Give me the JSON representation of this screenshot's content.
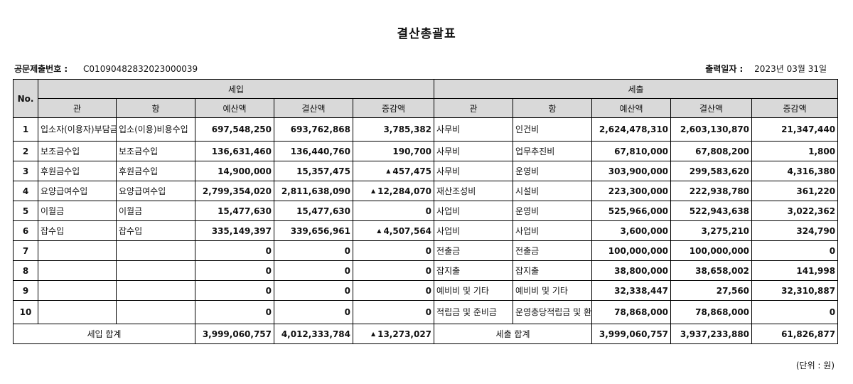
{
  "title": "결산총괄표",
  "doc_no_label": "공문제출번호 :",
  "doc_no": "C0109048283202300003​9",
  "print_date_label": "출력일자 :",
  "print_date": "2023년 03월 31일",
  "headers": {
    "no": "No.",
    "income_group": "세입",
    "expense_group": "세출",
    "gwan": "관",
    "hang": "항",
    "budget": "예산액",
    "settlement": "결산액",
    "change": "증감액"
  },
  "rows": [
    {
      "no": "1",
      "in_gwan": "입소자(이용자)부담금수입",
      "in_hang": "입소(이용)비용수입",
      "in_budget": "697,548,250",
      "in_settle": "693,762,868",
      "in_change": "3,785,382",
      "in_up": "",
      "ex_gwan": "사무비",
      "ex_hang": "인건비",
      "ex_budget": "2,624,478,310",
      "ex_settle": "2,603,130,870",
      "ex_change": "21,347,440"
    },
    {
      "no": "2",
      "in_gwan": "보조금수입",
      "in_hang": "보조금수입",
      "in_budget": "136,631,460",
      "in_settle": "136,440,760",
      "in_change": "190,700",
      "in_up": "",
      "ex_gwan": "사무비",
      "ex_hang": "업무추진비",
      "ex_budget": "67,810,000",
      "ex_settle": "67,808,200",
      "ex_change": "1,800"
    },
    {
      "no": "3",
      "in_gwan": "후원금수입",
      "in_hang": "후원금수입",
      "in_budget": "14,900,000",
      "in_settle": "15,357,475",
      "in_change": "457,475",
      "in_up": "▲",
      "ex_gwan": "사무비",
      "ex_hang": "운영비",
      "ex_budget": "303,900,000",
      "ex_settle": "299,583,620",
      "ex_change": "4,316,380"
    },
    {
      "no": "4",
      "in_gwan": "요양급여수입",
      "in_hang": "요양급여수입",
      "in_budget": "2,799,354,020",
      "in_settle": "2,811,638,090",
      "in_change": "12,284,070",
      "in_up": "▲",
      "ex_gwan": "재산조성비",
      "ex_hang": "시설비",
      "ex_budget": "223,300,000",
      "ex_settle": "222,938,780",
      "ex_change": "361,220"
    },
    {
      "no": "5",
      "in_gwan": "이월금",
      "in_hang": "이월금",
      "in_budget": "15,477,630",
      "in_settle": "15,477,630",
      "in_change": "0",
      "in_up": "",
      "ex_gwan": "사업비",
      "ex_hang": "운영비",
      "ex_budget": "525,966,000",
      "ex_settle": "522,943,638",
      "ex_change": "3,022,362"
    },
    {
      "no": "6",
      "in_gwan": "잡수입",
      "in_hang": "잡수입",
      "in_budget": "335,149,397",
      "in_settle": "339,656,961",
      "in_change": "4,507,564",
      "in_up": "▲",
      "ex_gwan": "사업비",
      "ex_hang": "사업비",
      "ex_budget": "3,600,000",
      "ex_settle": "3,275,210",
      "ex_change": "324,790"
    },
    {
      "no": "7",
      "in_gwan": "",
      "in_hang": "",
      "in_budget": "0",
      "in_settle": "0",
      "in_change": "0",
      "in_up": "",
      "ex_gwan": "전출금",
      "ex_hang": "전출금",
      "ex_budget": "100,000,000",
      "ex_settle": "100,000,000",
      "ex_change": "0"
    },
    {
      "no": "8",
      "in_gwan": "",
      "in_hang": "",
      "in_budget": "0",
      "in_settle": "0",
      "in_change": "0",
      "in_up": "",
      "ex_gwan": "잡지출",
      "ex_hang": "잡지출",
      "ex_budget": "38,800,000",
      "ex_settle": "38,658,002",
      "ex_change": "141,998"
    },
    {
      "no": "9",
      "in_gwan": "",
      "in_hang": "",
      "in_budget": "0",
      "in_settle": "0",
      "in_change": "0",
      "in_up": "",
      "ex_gwan": "예비비 및 기타",
      "ex_hang": "예비비 및 기타",
      "ex_budget": "32,338,447",
      "ex_settle": "27,560",
      "ex_change": "32,310,887"
    },
    {
      "no": "10",
      "in_gwan": "",
      "in_hang": "",
      "in_budget": "0",
      "in_settle": "0",
      "in_change": "0",
      "in_up": "",
      "ex_gwan": "적립금 및 준비금",
      "ex_hang": "운영충당적립금 및 환경개선부담금",
      "ex_budget": "78,868,000",
      "ex_settle": "78,868,000",
      "ex_change": "0"
    }
  ],
  "totals": {
    "in_label": "세입 합계",
    "in_budget": "3,999,060,757",
    "in_settle": "4,012,333,784",
    "in_change": "13,273,027",
    "in_up": "▲",
    "ex_label": "세출 합계",
    "ex_budget": "3,999,060,757",
    "ex_settle": "3,937,233,880",
    "ex_change": "61,826,877"
  },
  "unit_note": "(단위 : 원)"
}
